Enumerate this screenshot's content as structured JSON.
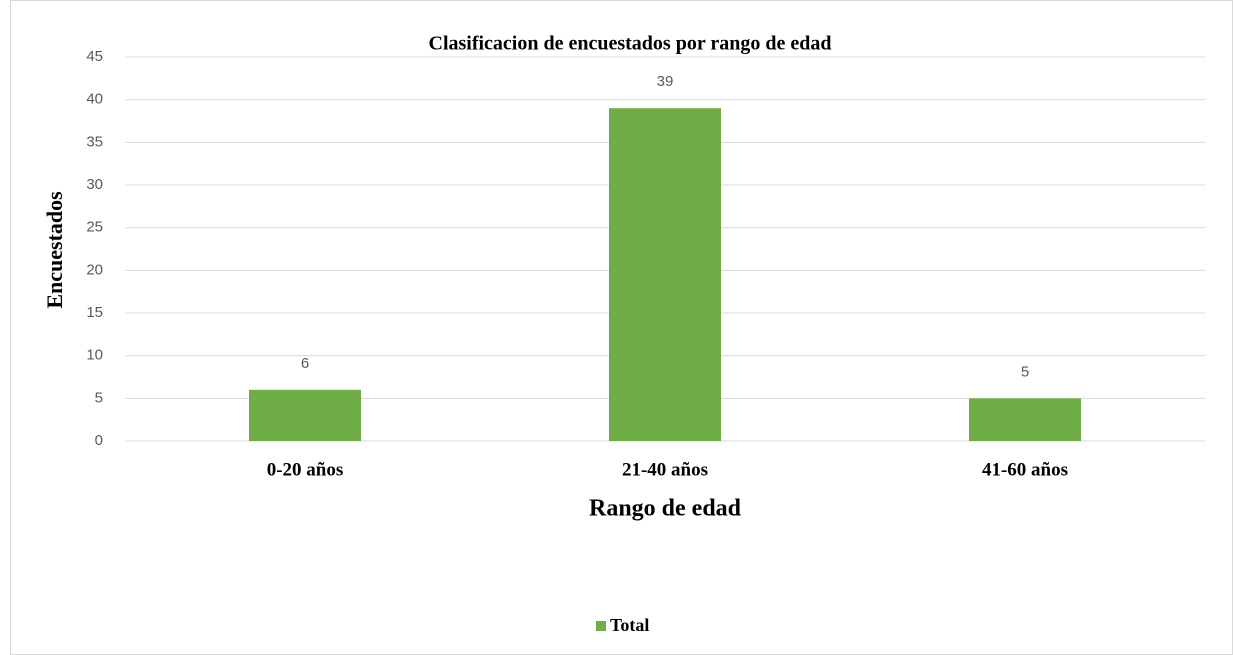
{
  "chart_data": {
    "type": "bar",
    "title": "Clasificacion de encuestados por rango de edad",
    "x_label": "Rango de edad",
    "y_label": "Encuestados",
    "categories": [
      "0-20 años",
      "21-40 años",
      "41-60 años"
    ],
    "series": [
      {
        "name": "Total",
        "color": "#70ad47",
        "values": [
          6,
          39,
          5
        ]
      }
    ],
    "ylim": [
      0,
      45
    ],
    "yticks": [
      0,
      5,
      10,
      15,
      20,
      25,
      30,
      35,
      40,
      45
    ],
    "grid": true,
    "legend": "bottom"
  }
}
